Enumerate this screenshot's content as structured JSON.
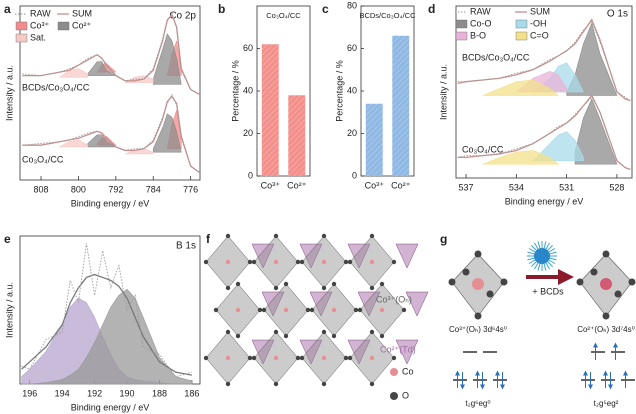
{
  "chart_data": [
    {
      "type": "spectra",
      "panel_label": "a",
      "title": "Co 2p",
      "xlabel": "Binding energy / eV",
      "ylabel": "Intensity / a.u.",
      "x": [
        812,
        808,
        804,
        802,
        800,
        798,
        796,
        795,
        794,
        792,
        790,
        788,
        786,
        784,
        782,
        781,
        780,
        779,
        778,
        776,
        774
      ],
      "xlim": [
        812.5,
        774
      ],
      "xticks": [
        808,
        800,
        792,
        784,
        776
      ],
      "ylim": [
        0,
        100
      ],
      "series": [
        {
          "name": "RAW",
          "color": "#9a9a9a",
          "style": "dotted"
        },
        {
          "name": "SUM",
          "color": "#c98f8f",
          "style": "line"
        },
        {
          "name": "Co³⁺",
          "color": "#f28b8b",
          "style": "area"
        },
        {
          "name": "Co²⁺",
          "color": "#8c8c8c",
          "style": "area"
        },
        {
          "name": "Sat.",
          "color": "#f6c9c6",
          "style": "area"
        }
      ],
      "spectra": [
        {
          "label": "BCDs/Co₃O₄/CC",
          "values": [
            [
              61,
              60,
              62,
              64,
              66,
              70,
              72,
              70,
              65,
              60,
              57,
              58,
              58,
              64,
              81,
              91,
              96,
              87,
              63,
              52,
              49
            ],
            [
              60,
              60,
              62,
              63,
              66,
              69,
              72,
              70,
              66,
              60,
              57,
              57,
              58,
              63,
              80,
              92,
              95,
              88,
              64,
              52,
              49
            ],
            [
              null,
              null,
              null,
              null,
              null,
              null,
              62,
              66,
              67,
              62,
              null,
              null,
              null,
              null,
              null,
              60,
              72,
              80,
              62,
              null,
              null
            ],
            [
              null,
              null,
              null,
              null,
              null,
              61,
              68,
              68,
              63,
              60,
              null,
              null,
              null,
              58,
              75,
              84,
              80,
              70,
              55,
              null,
              null
            ],
            [
              null,
              null,
              59,
              63,
              64,
              61,
              null,
              null,
              null,
              null,
              56,
              59,
              60,
              58,
              null,
              null,
              null,
              null,
              null,
              null,
              null
            ]
          ]
        },
        {
          "label": "Co₃O₄/CC",
          "values": [
            [
              20,
              21,
              22,
              23,
              25,
              27,
              28,
              27,
              23,
              19,
              17,
              18,
              18,
              23,
              36,
              44,
              49,
              43,
              24,
              8,
              4
            ],
            [
              20,
              20,
              22,
              23,
              24,
              26,
              28,
              27,
              24,
              19,
              17,
              17,
              18,
              22,
              35,
              45,
              48,
              44,
              25,
              8,
              4
            ],
            [
              null,
              null,
              null,
              null,
              null,
              null,
              21,
              24,
              25,
              20,
              null,
              null,
              null,
              null,
              null,
              18,
              32,
              40,
              22,
              null,
              null
            ],
            [
              null,
              null,
              null,
              null,
              null,
              21,
              26,
              26,
              22,
              19,
              null,
              null,
              null,
              18,
              30,
              38,
              36,
              28,
              16,
              null,
              null
            ],
            [
              null,
              null,
              19,
              22,
              23,
              20,
              null,
              null,
              null,
              null,
              15,
              17,
              18,
              16,
              null,
              null,
              null,
              null,
              null,
              null,
              null
            ]
          ]
        }
      ]
    },
    {
      "type": "bar",
      "panel_label": "b",
      "annotation": "Co₃O₄/CC",
      "ylabel": "Percentage / %",
      "categories": [
        "Co³⁺",
        "Co²⁺"
      ],
      "values": [
        62,
        38
      ],
      "color": "#f4908c",
      "ylim": [
        0,
        80
      ],
      "yticks": [
        0,
        20,
        40,
        60
      ]
    },
    {
      "type": "bar",
      "panel_label": "c",
      "annotation": "BCDs/Co₃O₄/CC",
      "ylabel": "Percentage / %",
      "categories": [
        "Co³⁺",
        "Co²⁺"
      ],
      "values": [
        34,
        66
      ],
      "color": "#8fb8e3",
      "ylim": [
        0,
        80
      ],
      "yticks": [
        0,
        20,
        40,
        60,
        80
      ]
    },
    {
      "type": "spectra",
      "panel_label": "d",
      "title": "O 1s",
      "xlabel": "Binding energy  / eV",
      "ylabel": "Intensity / a.u.",
      "x": [
        537.5,
        537,
        536,
        535,
        534,
        533,
        532,
        531.5,
        531,
        530.5,
        530,
        529.5,
        529,
        528,
        527.5,
        527.2
      ],
      "xlim": [
        537.6,
        527.1
      ],
      "xticks": [
        537,
        534,
        531,
        528
      ],
      "ylim": [
        0,
        100
      ],
      "series": [
        {
          "name": "RAW",
          "color": "#9a9a9a",
          "style": "dotted"
        },
        {
          "name": "SUM",
          "color": "#c98f8f",
          "style": "line"
        },
        {
          "name": "Co-O",
          "color": "#8c8c8c",
          "style": "area"
        },
        {
          "name": "-OH",
          "color": "#a8dcea",
          "style": "area"
        },
        {
          "name": "B-O",
          "color": "#e8b3d8",
          "style": "area"
        },
        {
          "name": "C=O",
          "color": "#f3e08a",
          "style": "area"
        }
      ],
      "spectra": [
        {
          "label": "BCDs/Co₃O₄/CC",
          "values": [
            [
              56,
              56,
              57,
              58,
              61,
              63,
              69,
              71,
              74,
              79,
              86,
              91,
              79,
              50,
              47,
              45
            ],
            [
              55,
              56,
              57,
              58,
              60,
              63,
              68,
              71,
              74,
              78,
              85,
              92,
              80,
              50,
              46,
              45
            ],
            [
              null,
              null,
              null,
              null,
              null,
              null,
              null,
              null,
              50,
              60,
              78,
              90,
              72,
              48,
              null,
              null
            ],
            [
              null,
              null,
              null,
              null,
              null,
              50,
              58,
              65,
              67,
              60,
              50,
              null,
              null,
              null,
              null,
              null
            ],
            [
              null,
              null,
              null,
              null,
              50,
              58,
              62,
              60,
              52,
              null,
              null,
              null,
              null,
              null,
              null,
              null
            ],
            [
              null,
              null,
              48,
              52,
              56,
              57,
              52,
              48,
              null,
              null,
              null,
              null,
              null,
              null,
              null,
              null
            ]
          ]
        },
        {
          "label": "Co₃O₄/CC",
          "values": [
            [
              12,
              13,
              13,
              14,
              17,
              20,
              26,
              30,
              32,
              37,
              42,
              47,
              38,
              10,
              6,
              5
            ],
            [
              12,
              12,
              13,
              14,
              16,
              20,
              26,
              29,
              32,
              36,
              42,
              48,
              38,
              10,
              6,
              5
            ],
            [
              null,
              null,
              null,
              null,
              null,
              null,
              null,
              null,
              null,
              15,
              35,
              46,
              34,
              8,
              null,
              null
            ],
            [
              null,
              null,
              null,
              null,
              null,
              10,
              20,
              25,
              27,
              22,
              12,
              null,
              null,
              null,
              null,
              null
            ],
            [
              null,
              null,
              null,
              null,
              null,
              null,
              null,
              null,
              null,
              null,
              null,
              null,
              null,
              null,
              null,
              null
            ],
            [
              null,
              null,
              8,
              12,
              15,
              16,
              12,
              8,
              null,
              null,
              null,
              null,
              null,
              null,
              null,
              null
            ]
          ]
        }
      ]
    },
    {
      "type": "spectra",
      "panel_label": "e",
      "title": "B 1s",
      "xlabel": "Binding energy / eV",
      "ylabel": "Intensity / a.u.",
      "x": [
        196.5,
        196,
        195,
        194,
        193.5,
        193,
        192.5,
        192,
        191.5,
        191,
        190.5,
        190,
        189.5,
        189,
        188,
        187,
        186
      ],
      "xlim": [
        196.6,
        185.5
      ],
      "xticks": [
        196,
        194,
        192,
        190,
        188,
        186
      ],
      "ylim": [
        0,
        100
      ],
      "series": [
        {
          "color": "#9a9a9a",
          "style": "dotted"
        },
        {
          "color": "#777777",
          "style": "line"
        },
        {
          "color": "#b7a6cf",
          "style": "area"
        },
        {
          "color": "#9a9a9a",
          "style": "area"
        }
      ],
      "spectra": [
        {
          "values": [
            [
              12,
              10,
              30,
              35,
              70,
              55,
              95,
              60,
              90,
              65,
              80,
              50,
              60,
              25,
              20,
              5,
              8
            ],
            [
              10,
              15,
              25,
              40,
              55,
              65,
              72,
              74,
              72,
              70,
              66,
              58,
              45,
              32,
              15,
              8,
              6
            ],
            [
              5,
              10,
              22,
              40,
              52,
              58,
              55,
              45,
              32,
              20,
              10,
              5,
              3,
              2,
              1,
              0,
              0
            ],
            [
              0,
              0,
              1,
              3,
              6,
              10,
              18,
              28,
              40,
              52,
              60,
              64,
              58,
              45,
              18,
              5,
              2
            ]
          ]
        }
      ]
    }
  ],
  "panels": {
    "f": {
      "label": "f",
      "oh_site": "Co³⁺(Oₕ)",
      "td_site": "Co²⁺(Td)",
      "legend": [
        "Co",
        "O"
      ]
    },
    "g": {
      "label": "g",
      "reagent": "+ BCDs",
      "before": "Co³⁺(Oₕ) 3d⁶4s⁰",
      "after": "Co²⁺(Oₕ) 3d⁷4s⁰",
      "before_config": "t₂g⁶eg⁰",
      "after_config": "t₂g⁵eg²"
    }
  }
}
